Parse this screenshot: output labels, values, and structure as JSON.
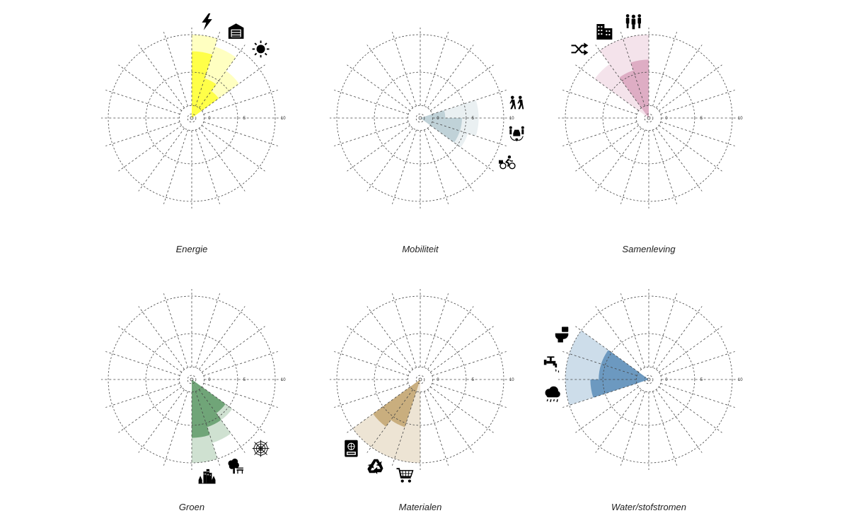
{
  "chart_data": [
    {
      "type": "radial-bar",
      "title": "Energie",
      "r_ticks": [
        "0",
        "5",
        "10"
      ],
      "rlim": [
        0,
        10
      ],
      "sectors": [
        {
          "icon": "lightning-icon",
          "sector": 0,
          "inner": 8,
          "outer": 10,
          "color": "#ffff33"
        },
        {
          "icon": "battery-icon",
          "sector": 1,
          "inner": 5,
          "outer": 9,
          "color": "#ffff33"
        },
        {
          "icon": "sun-icon",
          "sector": 2,
          "inner": 4,
          "outer": 7,
          "color": "#ffff33"
        }
      ]
    },
    {
      "type": "radial-bar",
      "title": "Mobiliteit",
      "r_ticks": [
        "0",
        "5",
        "10"
      ],
      "rlim": [
        0,
        10
      ],
      "sectors": [
        {
          "icon": "walking-icon",
          "sector": 4,
          "inner": 3,
          "outer": 7,
          "color": "#b9cdd3"
        },
        {
          "icon": "car-sharing-icon",
          "sector": 5,
          "inner": 5,
          "outer": 7,
          "color": "#b9cdd3"
        },
        {
          "icon": "cycling-icon",
          "sector": 6,
          "inner": 5,
          "outer": 6,
          "color": "#b9cdd3"
        }
      ]
    },
    {
      "type": "radial-bar",
      "title": "Samenleving",
      "r_ticks": [
        "0",
        "5",
        "10"
      ],
      "rlim": [
        0,
        10
      ],
      "sectors": [
        {
          "icon": "people-icon",
          "sector": 19,
          "inner": 7,
          "outer": 10,
          "color": "#d9a3bd"
        },
        {
          "icon": "building-icon",
          "sector": 18,
          "inner": 6,
          "outer": 10,
          "color": "#d9a3bd"
        },
        {
          "icon": "shuffle-icon",
          "sector": 17,
          "inner": 0,
          "outer": 8,
          "color": "#d9a3bd"
        }
      ]
    },
    {
      "type": "radial-bar",
      "title": "Groen",
      "r_ticks": [
        "0",
        "5",
        "10"
      ],
      "rlim": [
        0,
        10
      ],
      "sectors": [
        {
          "icon": "spiderweb-icon",
          "sector": 7,
          "inner": 5,
          "outer": 6,
          "color": "#5f9a68"
        },
        {
          "icon": "tree-bench-icon",
          "sector": 8,
          "inner": 6,
          "outer": 8,
          "color": "#5f9a68"
        },
        {
          "icon": "city-icon",
          "sector": 9,
          "inner": 7,
          "outer": 10,
          "color": "#5f9a68"
        }
      ]
    },
    {
      "type": "radial-bar",
      "title": "Materialen",
      "r_ticks": [
        "0",
        "5",
        "10"
      ],
      "rlim": [
        0,
        10
      ],
      "sectors": [
        {
          "icon": "shopping-cart-icon",
          "sector": 10,
          "inner": 0,
          "outer": 10,
          "color": "#c2a56f"
        },
        {
          "icon": "recycle-icon",
          "sector": 11,
          "inner": 6,
          "outer": 10,
          "color": "#c2a56f"
        },
        {
          "icon": "passport-icon",
          "sector": 12,
          "inner": 7,
          "outer": 10,
          "color": "#c2a56f"
        }
      ]
    },
    {
      "type": "radial-bar",
      "title": "Water/stofstromen",
      "r_ticks": [
        "0",
        "5",
        "10"
      ],
      "rlim": [
        0,
        10
      ],
      "sectors": [
        {
          "icon": "rain-cloud-icon",
          "sector": 14,
          "inner": 7,
          "outer": 10,
          "color": "#5b8db8"
        },
        {
          "icon": "tap-icon",
          "sector": 15,
          "inner": 6,
          "outer": 10,
          "color": "#5b8db8"
        },
        {
          "icon": "toilet-icon",
          "sector": 16,
          "inner": 6,
          "outer": 10,
          "color": "#5b8db8"
        }
      ]
    }
  ]
}
